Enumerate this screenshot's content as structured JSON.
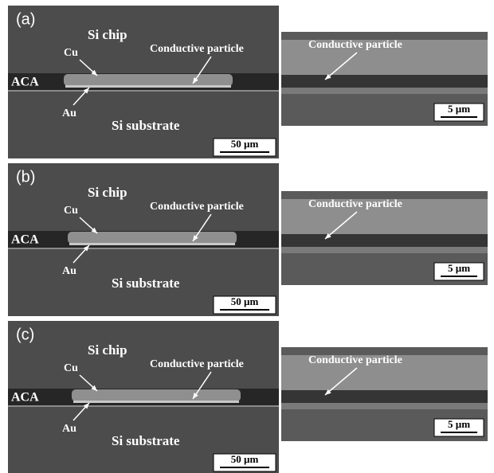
{
  "panels": [
    {
      "label": "(a)",
      "left": {
        "chip": "Si chip",
        "cu": "Cu",
        "particle": "Conductive particle",
        "aca": "ACA",
        "au": "Au",
        "substrate": "Si substrate",
        "scale": "50 µm"
      },
      "right": {
        "particle": "Conductive particle",
        "scale": "5 µm"
      }
    },
    {
      "label": "(b)",
      "left": {
        "chip": "Si chip",
        "cu": "Cu",
        "particle": "Conductive particle",
        "aca": "ACA",
        "au": "Au",
        "substrate": "Si substrate",
        "scale": "50 µm"
      },
      "right": {
        "particle": "Conductive particle",
        "scale": "5 µm"
      }
    },
    {
      "label": "(c)",
      "left": {
        "chip": "Si chip",
        "cu": "Cu",
        "particle": "Conductive particle",
        "aca": "ACA",
        "au": "Au",
        "substrate": "Si substrate",
        "scale": "50 µm"
      },
      "right": {
        "particle": "Conductive particle",
        "scale": "5 µm"
      }
    }
  ]
}
